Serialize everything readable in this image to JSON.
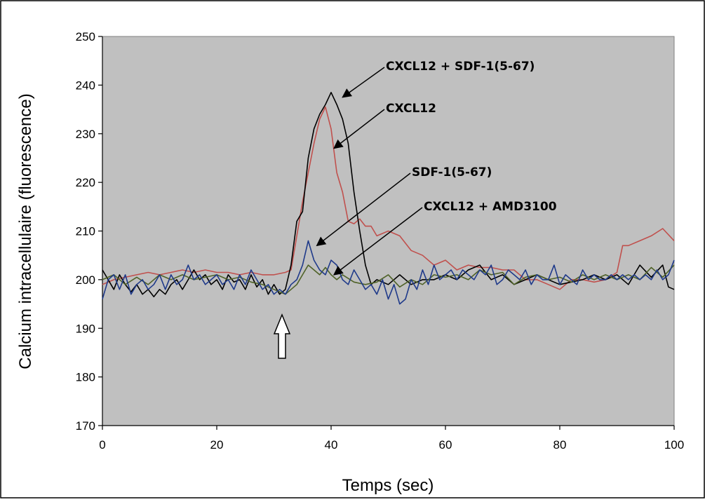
{
  "chart_data": {
    "type": "line",
    "title": "",
    "xlabel": "Temps (sec)",
    "ylabel": "Calcium intracellulaire (fluorescence)",
    "xlim": [
      0,
      100
    ],
    "ylim": [
      170,
      250
    ],
    "x_ticks": [
      "0",
      "20",
      "40",
      "60",
      "80",
      "100"
    ],
    "y_ticks": [
      "170",
      "180",
      "190",
      "200",
      "210",
      "220",
      "230",
      "240",
      "250"
    ],
    "plot_background": "#c0c0c0",
    "grid": false,
    "legend": "none",
    "stimulus_marker_x": 32,
    "series": [
      {
        "color": "#c0504d",
        "points": [
          [
            0,
            199
          ],
          [
            2,
            200
          ],
          [
            4,
            200.5
          ],
          [
            6,
            201
          ],
          [
            8,
            201.5
          ],
          [
            10,
            201
          ],
          [
            12,
            201.5
          ],
          [
            14,
            202
          ],
          [
            16,
            201.5
          ],
          [
            18,
            202
          ],
          [
            20,
            201.5
          ],
          [
            22,
            201.5
          ],
          [
            24,
            201
          ],
          [
            26,
            201.5
          ],
          [
            28,
            201
          ],
          [
            30,
            201
          ],
          [
            32,
            201.5
          ],
          [
            33,
            202
          ],
          [
            34,
            209
          ],
          [
            35,
            216
          ],
          [
            36,
            222
          ],
          [
            37,
            228
          ],
          [
            38,
            233
          ],
          [
            39,
            235.5
          ],
          [
            40,
            231
          ],
          [
            41,
            222
          ],
          [
            42,
            218
          ],
          [
            43,
            212
          ],
          [
            44,
            211.5
          ],
          [
            45,
            212.5
          ],
          [
            46,
            211
          ],
          [
            47,
            211
          ],
          [
            48,
            209
          ],
          [
            50,
            210
          ],
          [
            52,
            209
          ],
          [
            54,
            206
          ],
          [
            56,
            205
          ],
          [
            58,
            203
          ],
          [
            60,
            204
          ],
          [
            62,
            202
          ],
          [
            64,
            203
          ],
          [
            66,
            202.5
          ],
          [
            68,
            202.5
          ],
          [
            70,
            202
          ],
          [
            72,
            202
          ],
          [
            74,
            200
          ],
          [
            76,
            200
          ],
          [
            78,
            199
          ],
          [
            80,
            198
          ],
          [
            82,
            200
          ],
          [
            84,
            200
          ],
          [
            86,
            199.5
          ],
          [
            88,
            200
          ],
          [
            90,
            201.5
          ],
          [
            91,
            207
          ],
          [
            92,
            207
          ],
          [
            94,
            208
          ],
          [
            96,
            209
          ],
          [
            98,
            210.5
          ],
          [
            100,
            208
          ]
        ]
      },
      {
        "color": "#000000",
        "points": [
          [
            0,
            202
          ],
          [
            1,
            200
          ],
          [
            2,
            198
          ],
          [
            3,
            201
          ],
          [
            4,
            199
          ],
          [
            5,
            197.5
          ],
          [
            6,
            199
          ],
          [
            7,
            197
          ],
          [
            8,
            198
          ],
          [
            9,
            196.5
          ],
          [
            10,
            198
          ],
          [
            11,
            197
          ],
          [
            12,
            199
          ],
          [
            13,
            200
          ],
          [
            14,
            198
          ],
          [
            15,
            200
          ],
          [
            16,
            202
          ],
          [
            17,
            200
          ],
          [
            18,
            201
          ],
          [
            19,
            199
          ],
          [
            20,
            200
          ],
          [
            21,
            198
          ],
          [
            22,
            201
          ],
          [
            23,
            199.5
          ],
          [
            24,
            200
          ],
          [
            25,
            198
          ],
          [
            26,
            201
          ],
          [
            27,
            198.5
          ],
          [
            28,
            200
          ],
          [
            29,
            197
          ],
          [
            30,
            199
          ],
          [
            31,
            197
          ],
          [
            32,
            198
          ],
          [
            33,
            203
          ],
          [
            34,
            212
          ],
          [
            35,
            214
          ],
          [
            36,
            225
          ],
          [
            37,
            231
          ],
          [
            38,
            234
          ],
          [
            39,
            236
          ],
          [
            40,
            238.5
          ],
          [
            41,
            236
          ],
          [
            42,
            233
          ],
          [
            43,
            228
          ],
          [
            44,
            218
          ],
          [
            45,
            210
          ],
          [
            46,
            203
          ],
          [
            47,
            199
          ],
          [
            48,
            200
          ],
          [
            50,
            199
          ],
          [
            52,
            201
          ],
          [
            54,
            199
          ],
          [
            56,
            200
          ],
          [
            58,
            200
          ],
          [
            60,
            201
          ],
          [
            62,
            200
          ],
          [
            64,
            202
          ],
          [
            66,
            203
          ],
          [
            68,
            200
          ],
          [
            70,
            201
          ],
          [
            72,
            199
          ],
          [
            74,
            200
          ],
          [
            76,
            201
          ],
          [
            78,
            200
          ],
          [
            80,
            199
          ],
          [
            82,
            199.5
          ],
          [
            84,
            200
          ],
          [
            86,
            201
          ],
          [
            88,
            200
          ],
          [
            90,
            201
          ],
          [
            92,
            199
          ],
          [
            94,
            203
          ],
          [
            96,
            200.5
          ],
          [
            98,
            203
          ],
          [
            99,
            198.5
          ],
          [
            100,
            198
          ]
        ]
      },
      {
        "color": "#4f6228",
        "points": [
          [
            0,
            200
          ],
          [
            2,
            201
          ],
          [
            4,
            199
          ],
          [
            6,
            200.5
          ],
          [
            8,
            199
          ],
          [
            10,
            201
          ],
          [
            12,
            200
          ],
          [
            14,
            201
          ],
          [
            16,
            200
          ],
          [
            18,
            200.5
          ],
          [
            20,
            201
          ],
          [
            22,
            200
          ],
          [
            24,
            200.5
          ],
          [
            26,
            199.5
          ],
          [
            28,
            199
          ],
          [
            30,
            198
          ],
          [
            32,
            197
          ],
          [
            34,
            199
          ],
          [
            35,
            201
          ],
          [
            36,
            203
          ],
          [
            37,
            202
          ],
          [
            38,
            201
          ],
          [
            39,
            202.5
          ],
          [
            40,
            201
          ],
          [
            41,
            200
          ],
          [
            42,
            201
          ],
          [
            44,
            199.5
          ],
          [
            46,
            199
          ],
          [
            48,
            199.5
          ],
          [
            50,
            201
          ],
          [
            52,
            198.5
          ],
          [
            54,
            200
          ],
          [
            56,
            199
          ],
          [
            58,
            201
          ],
          [
            60,
            200.5
          ],
          [
            62,
            201
          ],
          [
            64,
            200
          ],
          [
            66,
            202
          ],
          [
            68,
            201
          ],
          [
            70,
            201.5
          ],
          [
            72,
            199
          ],
          [
            74,
            200.5
          ],
          [
            76,
            201
          ],
          [
            78,
            200
          ],
          [
            80,
            200.5
          ],
          [
            82,
            199.5
          ],
          [
            84,
            201
          ],
          [
            86,
            200
          ],
          [
            88,
            201
          ],
          [
            90,
            200
          ],
          [
            92,
            201
          ],
          [
            94,
            200
          ],
          [
            96,
            202.5
          ],
          [
            98,
            200.5
          ],
          [
            100,
            203
          ]
        ]
      },
      {
        "color": "#1f3a8a",
        "points": [
          [
            0,
            196
          ],
          [
            1,
            200
          ],
          [
            2,
            201
          ],
          [
            3,
            198
          ],
          [
            4,
            201
          ],
          [
            5,
            197
          ],
          [
            6,
            199
          ],
          [
            7,
            200
          ],
          [
            8,
            198
          ],
          [
            9,
            199
          ],
          [
            10,
            201
          ],
          [
            11,
            198
          ],
          [
            12,
            201
          ],
          [
            13,
            199
          ],
          [
            14,
            200
          ],
          [
            15,
            203
          ],
          [
            16,
            200
          ],
          [
            17,
            201
          ],
          [
            18,
            199
          ],
          [
            19,
            200
          ],
          [
            20,
            201
          ],
          [
            21,
            199
          ],
          [
            22,
            200
          ],
          [
            23,
            198
          ],
          [
            24,
            201
          ],
          [
            25,
            199
          ],
          [
            26,
            202
          ],
          [
            27,
            200
          ],
          [
            28,
            198
          ],
          [
            29,
            199
          ],
          [
            30,
            197
          ],
          [
            31,
            198
          ],
          [
            32,
            197
          ],
          [
            33,
            199
          ],
          [
            34,
            200
          ],
          [
            35,
            203
          ],
          [
            36,
            208
          ],
          [
            37,
            204
          ],
          [
            38,
            202
          ],
          [
            39,
            201
          ],
          [
            40,
            204
          ],
          [
            41,
            203
          ],
          [
            42,
            200
          ],
          [
            43,
            199
          ],
          [
            44,
            202
          ],
          [
            45,
            200
          ],
          [
            46,
            198
          ],
          [
            47,
            199
          ],
          [
            48,
            197
          ],
          [
            49,
            200
          ],
          [
            50,
            196
          ],
          [
            51,
            199
          ],
          [
            52,
            195
          ],
          [
            53,
            196
          ],
          [
            54,
            200
          ],
          [
            55,
            198
          ],
          [
            56,
            202
          ],
          [
            57,
            199
          ],
          [
            58,
            203
          ],
          [
            59,
            200
          ],
          [
            60,
            201
          ],
          [
            61,
            202
          ],
          [
            62,
            200
          ],
          [
            63,
            202
          ],
          [
            64,
            201
          ],
          [
            65,
            200
          ],
          [
            66,
            202
          ],
          [
            67,
            201
          ],
          [
            68,
            203
          ],
          [
            69,
            199
          ],
          [
            70,
            200
          ],
          [
            71,
            202
          ],
          [
            72,
            201
          ],
          [
            73,
            200
          ],
          [
            74,
            202
          ],
          [
            75,
            199
          ],
          [
            76,
            201
          ],
          [
            77,
            200
          ],
          [
            78,
            200
          ],
          [
            79,
            203
          ],
          [
            80,
            199
          ],
          [
            81,
            201
          ],
          [
            82,
            200
          ],
          [
            83,
            199
          ],
          [
            84,
            202
          ],
          [
            85,
            200
          ],
          [
            86,
            201
          ],
          [
            87,
            200
          ],
          [
            88,
            200
          ],
          [
            89,
            201
          ],
          [
            90,
            200
          ],
          [
            91,
            201
          ],
          [
            92,
            200
          ],
          [
            93,
            201
          ],
          [
            94,
            200
          ],
          [
            95,
            201
          ],
          [
            96,
            200
          ],
          [
            97,
            202
          ],
          [
            98,
            200
          ],
          [
            99,
            201
          ],
          [
            100,
            204
          ]
        ]
      }
    ],
    "annotations": [
      {
        "text": "CXCL12 + SDF-1(5-67)",
        "target": [
          42,
          237.5
        ]
      },
      {
        "text": "CXCL12",
        "target": [
          40.5,
          227
        ]
      },
      {
        "text": "SDF-1(5-67)",
        "target": [
          37.5,
          207
        ]
      },
      {
        "text": "CXCL12 + AMD3100",
        "target": [
          40.5,
          201
        ]
      }
    ]
  }
}
